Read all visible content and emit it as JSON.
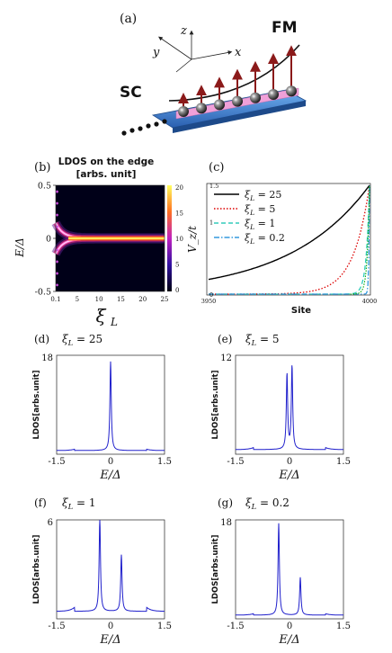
{
  "figure": {
    "panel_a": {
      "label": "(a)",
      "axis_z": "z",
      "axis_y": "y",
      "axis_x": "x",
      "fm_label": "FM",
      "sc_label": "SC"
    },
    "panel_b": {
      "label": "(b)",
      "title_line1": "LDOS on the edge",
      "title_line2": "[arbs. unit]",
      "ylabel_left": "E/Δ",
      "xlabel": "ξ",
      "xlabel_sub": "L",
      "yticks": [
        "0.5",
        "0",
        "-0.5"
      ],
      "xticks": [
        "0.1",
        "5",
        "10",
        "15",
        "20",
        "25"
      ],
      "colorbar_ticks": [
        "20",
        "15",
        "10",
        "5",
        "0"
      ]
    },
    "panel_c": {
      "label": "(c)",
      "ylabel": "V_z/t",
      "xlabel": "Site",
      "yticks": [
        "1.5",
        "1",
        "0"
      ],
      "xticks": [
        "3950",
        "4000"
      ],
      "legend": [
        "ξ_L = 25",
        "ξ_L = 5",
        "ξ_L = 1",
        "ξ_L = 0.2"
      ]
    },
    "small_panels": [
      {
        "label": "(d)",
        "title": "ξ_L = 25",
        "ymax": "18",
        "xticks": [
          "-1.5",
          "0",
          "1.5"
        ]
      },
      {
        "label": "(e)",
        "title": "ξ_L = 5",
        "ymax": "12",
        "xticks": [
          "-1.5",
          "0",
          "1.5"
        ]
      },
      {
        "label": "(f)",
        "title": "ξ_L = 1",
        "ymax": "6",
        "xticks": [
          "-1.5",
          "0",
          "1.5"
        ]
      },
      {
        "label": "(g)",
        "title": "ξ_L = 0.2",
        "ymax": "18",
        "xticks": [
          "-1.5",
          "0",
          "1.5"
        ]
      }
    ],
    "small_ylabel": "LDOS[arbs.unit]",
    "small_xlabel": "E/Δ",
    "colors": {
      "blue": "#2020cc",
      "black": "#000000",
      "red": "#dd0000",
      "cyan": "#33ccbb",
      "lightblue": "#3399dd",
      "green": "#00aa00",
      "arrow": "#8b1a1a",
      "pink": "#f0a0d8",
      "substrate": "#3a7fd0"
    }
  },
  "chart_data": [
    {
      "type": "heatmap",
      "title": "LDOS on the edge [arbs. unit]",
      "xlabel": "ξ_L",
      "ylabel": "E/Δ",
      "xlim": [
        0.1,
        25
      ],
      "ylim": [
        -0.5,
        0.5
      ],
      "colorbar_range": [
        0,
        20
      ]
    },
    {
      "type": "line",
      "xlabel": "Site",
      "ylabel": "V_z/t",
      "xlim": [
        3950,
        4000
      ],
      "ylim": [
        0,
        1.5
      ],
      "series": [
        {
          "name": "ξ_L = 25",
          "decay": 25,
          "style": "solid"
        },
        {
          "name": "ξ_L = 5",
          "decay": 5,
          "style": "dotted"
        },
        {
          "name": "ξ_L = 1",
          "decay": 1,
          "style": "dashed"
        },
        {
          "name": "ξ_L = 0.2",
          "decay": 0.2,
          "style": "dashdot"
        }
      ]
    },
    {
      "type": "line",
      "title": "ξ_L = 25",
      "xlabel": "E/Δ",
      "ylabel": "LDOS[arbs.unit]",
      "xlim": [
        -1.5,
        1.5
      ],
      "ylim": [
        0,
        18
      ],
      "peaks": [
        {
          "E": 0.0,
          "h": 16.5
        }
      ]
    },
    {
      "type": "line",
      "title": "ξ_L = 5",
      "xlabel": "E/Δ",
      "ylabel": "LDOS[arbs.unit]",
      "xlim": [
        -1.5,
        1.5
      ],
      "ylim": [
        0,
        12
      ],
      "peaks": [
        {
          "E": -0.07,
          "h": 9.3
        },
        {
          "E": 0.07,
          "h": 10.3
        }
      ]
    },
    {
      "type": "line",
      "title": "ξ_L = 1",
      "xlabel": "E/Δ",
      "ylabel": "LDOS[arbs.unit]",
      "xlim": [
        -1.5,
        1.5
      ],
      "ylim": [
        0,
        6
      ],
      "peaks": [
        {
          "E": -0.3,
          "h": 5.8
        },
        {
          "E": 0.3,
          "h": 3.5
        }
      ]
    },
    {
      "type": "line",
      "title": "ξ_L = 0.2",
      "xlabel": "E/Δ",
      "ylabel": "LDOS[arbs.unit]",
      "xlim": [
        -1.5,
        1.5
      ],
      "ylim": [
        0,
        18
      ],
      "peaks": [
        {
          "E": -0.3,
          "h": 17
        },
        {
          "E": 0.3,
          "h": 7
        }
      ]
    }
  ]
}
